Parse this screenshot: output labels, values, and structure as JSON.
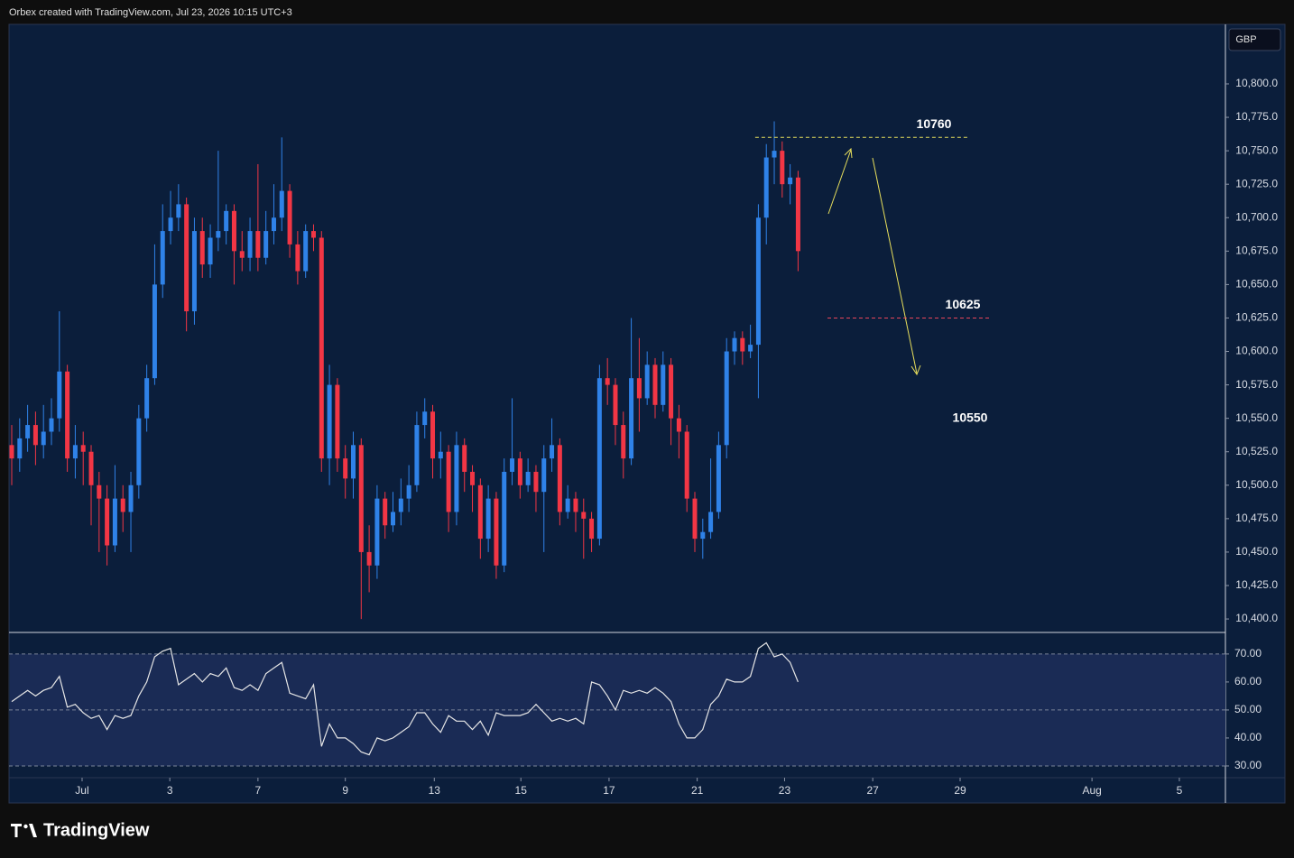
{
  "header": {
    "title": "Orbex created with TradingView.com, Jul 23, 2026 10:15 UTC+3",
    "currency": "GBP",
    "brand": "TradingView"
  },
  "chart_data": [
    {
      "type": "candlestick",
      "up_color": "#2f82e8",
      "down_color": "#f23645",
      "open": [
        10530,
        10520,
        10535,
        10545,
        10530,
        10540,
        10550,
        10585,
        10520,
        10530,
        10525,
        10500,
        10490,
        10455,
        10490,
        10480,
        10500,
        10550,
        10580,
        10650,
        10690,
        10700,
        10710,
        10630,
        10690,
        10665,
        10685,
        10690,
        10705,
        10675,
        10670,
        10690,
        10670,
        10690,
        10700,
        10720,
        10680,
        10660,
        10690,
        10685,
        10520,
        10575,
        10520,
        10505,
        10530,
        10450,
        10440,
        10490,
        10470,
        10480,
        10490,
        10500,
        10545,
        10555,
        10520,
        10525,
        10480,
        10530,
        10510,
        10500,
        10460,
        10490,
        10440,
        10510,
        10520,
        10500,
        10510,
        10495,
        10520,
        10530,
        10480,
        10490,
        10480,
        10475,
        10460,
        10580,
        10575,
        10545,
        10520,
        10580,
        10565,
        10590,
        10560,
        10590,
        10550,
        10540,
        10490,
        10460,
        10465,
        10480,
        10530,
        10600,
        10610,
        10600,
        10605,
        10700,
        10745,
        10750,
        10725,
        10730
      ],
      "high": [
        10545,
        10550,
        10560,
        10555,
        10560,
        10565,
        10630,
        10590,
        10545,
        10540,
        10530,
        10510,
        10500,
        10515,
        10500,
        10510,
        10560,
        10590,
        10680,
        10710,
        10720,
        10725,
        10715,
        10700,
        10700,
        10695,
        10750,
        10710,
        10710,
        10690,
        10700,
        10740,
        10705,
        10725,
        10760,
        10725,
        10690,
        10695,
        10695,
        10690,
        10590,
        10580,
        10530,
        10540,
        10535,
        10470,
        10500,
        10495,
        10495,
        10505,
        10515,
        10555,
        10565,
        10560,
        10540,
        10530,
        10540,
        10535,
        10515,
        10505,
        10500,
        10495,
        10520,
        10565,
        10525,
        10520,
        10515,
        10530,
        10550,
        10535,
        10500,
        10495,
        10490,
        10480,
        10590,
        10595,
        10580,
        10555,
        10625,
        10610,
        10600,
        10595,
        10600,
        10595,
        10560,
        10545,
        10495,
        10475,
        10520,
        10540,
        10610,
        10615,
        10615,
        10620,
        10710,
        10755,
        10772,
        10757,
        10740,
        10735
      ],
      "low": [
        10500,
        10510,
        10525,
        10515,
        10520,
        10530,
        10540,
        10510,
        10505,
        10500,
        10470,
        10450,
        10440,
        10450,
        10465,
        10450,
        10490,
        10540,
        10575,
        10640,
        10680,
        10690,
        10615,
        10620,
        10655,
        10655,
        10675,
        10680,
        10650,
        10660,
        10660,
        10660,
        10665,
        10680,
        10690,
        10670,
        10650,
        10655,
        10675,
        10510,
        10500,
        10510,
        10490,
        10490,
        10400,
        10420,
        10430,
        10460,
        10465,
        10470,
        10480,
        10495,
        10535,
        10505,
        10505,
        10465,
        10470,
        10495,
        10480,
        10445,
        10450,
        10430,
        10435,
        10500,
        10490,
        10495,
        10480,
        10450,
        10510,
        10470,
        10475,
        10465,
        10445,
        10450,
        10455,
        10560,
        10530,
        10505,
        10515,
        10540,
        10560,
        10550,
        10555,
        10530,
        10520,
        10480,
        10450,
        10445,
        10460,
        10475,
        10520,
        10590,
        10590,
        10595,
        10565,
        10680,
        10725,
        10715,
        10710,
        10660
      ],
      "close": [
        10520,
        10535,
        10545,
        10530,
        10540,
        10550,
        10585,
        10520,
        10530,
        10525,
        10500,
        10490,
        10455,
        10490,
        10480,
        10500,
        10550,
        10580,
        10650,
        10690,
        10700,
        10710,
        10630,
        10690,
        10665,
        10685,
        10690,
        10705,
        10675,
        10670,
        10690,
        10670,
        10690,
        10700,
        10720,
        10680,
        10660,
        10690,
        10685,
        10520,
        10575,
        10520,
        10505,
        10530,
        10450,
        10440,
        10490,
        10470,
        10480,
        10490,
        10500,
        10545,
        10555,
        10520,
        10525,
        10480,
        10530,
        10510,
        10500,
        10460,
        10490,
        10440,
        10510,
        10520,
        10500,
        10510,
        10495,
        10520,
        10530,
        10480,
        10490,
        10480,
        10475,
        10460,
        10580,
        10575,
        10545,
        10520,
        10580,
        10565,
        10590,
        10560,
        10590,
        10550,
        10540,
        10490,
        10460,
        10465,
        10480,
        10530,
        10600,
        10610,
        10600,
        10605,
        10700,
        10745,
        10750,
        10725,
        10730,
        10675
      ],
      "xlim": [
        -0.34,
        152.8
      ],
      "xticks": [
        {
          "value": 8.86,
          "label": "Jul"
        },
        {
          "value": 19.9,
          "label": "3"
        },
        {
          "value": 31.0,
          "label": "7"
        },
        {
          "value": 42.0,
          "label": "9"
        },
        {
          "value": 53.2,
          "label": "13"
        },
        {
          "value": 64.1,
          "label": "15"
        },
        {
          "value": 75.2,
          "label": "17"
        },
        {
          "value": 86.3,
          "label": "21"
        },
        {
          "value": 97.3,
          "label": "23"
        },
        {
          "value": 108.4,
          "label": "27"
        },
        {
          "value": 119.4,
          "label": "29"
        },
        {
          "value": 136.0,
          "label": "Aug"
        },
        {
          "value": 147.0,
          "label": "5"
        }
      ],
      "ylim": [
        10390.6,
        10844.5
      ],
      "yticks": [
        {
          "value": 10400,
          "label": "10,400.0"
        },
        {
          "value": 10425,
          "label": "10,425.0"
        },
        {
          "value": 10450,
          "label": "10,450.0"
        },
        {
          "value": 10475,
          "label": "10,475.0"
        },
        {
          "value": 10500,
          "label": "10,500.0"
        },
        {
          "value": 10525,
          "label": "10,525.0"
        },
        {
          "value": 10550,
          "label": "10,550.0"
        },
        {
          "value": 10575,
          "label": "10,575.0"
        },
        {
          "value": 10600,
          "label": "10,600.0"
        },
        {
          "value": 10625,
          "label": "10,625.0"
        },
        {
          "value": 10650,
          "label": "10,650.0"
        },
        {
          "value": 10675,
          "label": "10,675.0"
        },
        {
          "value": 10700,
          "label": "10,700.0"
        },
        {
          "value": 10725,
          "label": "10,725.0"
        },
        {
          "value": 10750,
          "label": "10,750.0"
        },
        {
          "value": 10775,
          "label": "10,775.0"
        },
        {
          "value": 10800,
          "label": "10,800.0"
        }
      ],
      "levels": [
        {
          "value": 10760,
          "color": "#e8df5c",
          "line": true
        },
        {
          "value": 10625,
          "color": "#e8455a",
          "line": true
        },
        {
          "value": 10550,
          "color": "#ffffff",
          "line": false
        }
      ]
    },
    {
      "type": "line",
      "color": "#e6e6e6",
      "band_color": "#1a2b55",
      "band": [
        30,
        70
      ],
      "guides": [
        70,
        50,
        30
      ],
      "values": [
        53,
        55,
        57,
        55,
        57,
        58,
        62,
        51,
        52,
        49,
        47,
        48,
        43,
        48,
        47,
        48,
        55,
        60,
        69,
        71,
        72,
        59,
        61,
        63,
        60,
        63,
        62,
        65,
        58,
        57,
        59,
        57,
        63,
        65,
        67,
        56,
        55,
        54,
        59,
        37,
        45,
        40,
        40,
        38,
        35,
        34,
        40,
        39,
        40,
        42,
        44,
        49,
        49,
        45,
        42,
        48,
        46,
        46,
        43,
        46,
        41,
        49,
        48,
        48,
        48,
        49,
        52,
        49,
        46,
        47,
        46,
        47,
        45,
        60,
        59,
        55,
        50,
        57,
        56,
        57,
        56,
        58,
        56,
        53,
        45,
        40,
        40,
        43,
        52,
        55,
        61,
        60,
        60,
        62,
        72,
        74,
        69,
        70,
        67,
        60
      ],
      "ylim": [
        25.8,
        77.7
      ],
      "yticks": [
        {
          "value": 30,
          "label": "30.00"
        },
        {
          "value": 40,
          "label": "40.00"
        },
        {
          "value": 50,
          "label": "50.00"
        },
        {
          "value": 60,
          "label": "60.00"
        },
        {
          "value": 70,
          "label": "70.00"
        }
      ]
    }
  ]
}
